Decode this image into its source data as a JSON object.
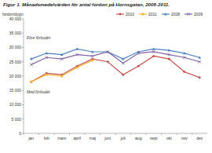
{
  "chart_data": {
    "type": "line",
    "title": "Figur 1. Månadsmedelvärden för antal fordon på Hornsgatan, 2008-2011.",
    "y_label": "fordon/dygn",
    "annotations": [
      "Före förbudet",
      "Med förbudet"
    ],
    "categories": [
      "jan",
      "feb",
      "mars",
      "april",
      "maj",
      "juni",
      "juli",
      "aug",
      "sept",
      "okt",
      "nov",
      "dec"
    ],
    "series": [
      {
        "name": "2010",
        "color": "#c0504d",
        "marker": "diamond",
        "values": [
          18000,
          21000,
          20500,
          23500,
          26000,
          25000,
          20500,
          23500,
          27000,
          26000,
          21500,
          19500
        ]
      },
      {
        "name": "2011",
        "color": "#f0b430",
        "marker": "square",
        "values": [
          18000,
          20500,
          20000,
          23000,
          25500,
          null,
          null,
          null,
          null,
          null,
          null,
          null
        ]
      },
      {
        "name": "2008",
        "color": "#4f81bd",
        "marker": "triangle",
        "values": [
          26000,
          28000,
          27500,
          29500,
          28500,
          28500,
          26000,
          28500,
          29500,
          29000,
          28000,
          26500
        ]
      },
      {
        "name": "2009",
        "color": "#8064a2",
        "marker": "x",
        "values": [
          24000,
          26500,
          26000,
          27500,
          27000,
          28500,
          24500,
          28000,
          28500,
          27500,
          26500,
          25000
        ]
      }
    ],
    "ylim": [
      0,
      40000
    ],
    "yticks": [
      0,
      {
        "value": 5000,
        "label": "5 000"
      },
      {
        "value": 10000,
        "label": "10 000"
      },
      {
        "value": 15000,
        "label": "15 000"
      },
      {
        "value": 20000,
        "label": "20 000"
      },
      {
        "value": 25000,
        "label": "25 000"
      },
      {
        "value": 30000,
        "label": "30 000"
      },
      {
        "value": 35000,
        "label": "35 000"
      },
      {
        "value": 40000,
        "label": "40 000"
      }
    ],
    "legend": "top-right",
    "grid": false
  }
}
